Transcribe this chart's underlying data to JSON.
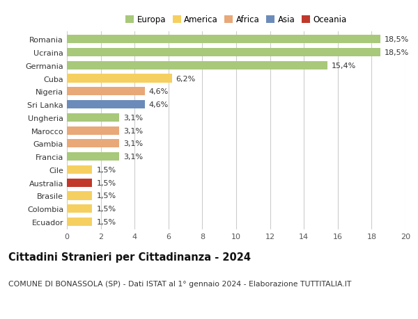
{
  "categories": [
    "Romania",
    "Ucraina",
    "Germania",
    "Cuba",
    "Nigeria",
    "Sri Lanka",
    "Ungheria",
    "Marocco",
    "Gambia",
    "Francia",
    "Cile",
    "Australia",
    "Brasile",
    "Colombia",
    "Ecuador"
  ],
  "values": [
    18.5,
    18.5,
    15.4,
    6.2,
    4.6,
    4.6,
    3.1,
    3.1,
    3.1,
    3.1,
    1.5,
    1.5,
    1.5,
    1.5,
    1.5
  ],
  "labels": [
    "18,5%",
    "18,5%",
    "15,4%",
    "6,2%",
    "4,6%",
    "4,6%",
    "3,1%",
    "3,1%",
    "3,1%",
    "3,1%",
    "1,5%",
    "1,5%",
    "1,5%",
    "1,5%",
    "1,5%"
  ],
  "continents": [
    "Europa",
    "Europa",
    "Europa",
    "America",
    "Africa",
    "Asia",
    "Europa",
    "Africa",
    "Africa",
    "Europa",
    "America",
    "Oceania",
    "America",
    "America",
    "America"
  ],
  "continent_colors": {
    "Europa": "#a8c87a",
    "America": "#f5d060",
    "Africa": "#e8a878",
    "Asia": "#6b8cba",
    "Oceania": "#c0392b"
  },
  "legend_order": [
    "Europa",
    "America",
    "Africa",
    "Asia",
    "Oceania"
  ],
  "title": "Cittadini Stranieri per Cittadinanza - 2024",
  "subtitle": "COMUNE DI BONASSOLA (SP) - Dati ISTAT al 1° gennaio 2024 - Elaborazione TUTTITALIA.IT",
  "xlim": [
    0,
    20
  ],
  "xticks": [
    0,
    2,
    4,
    6,
    8,
    10,
    12,
    14,
    16,
    18,
    20
  ],
  "bg_color": "#ffffff",
  "grid_color": "#cccccc",
  "bar_height": 0.65,
  "label_fontsize": 8,
  "title_fontsize": 10.5,
  "subtitle_fontsize": 7.8,
  "tick_fontsize": 8,
  "legend_fontsize": 8.5
}
